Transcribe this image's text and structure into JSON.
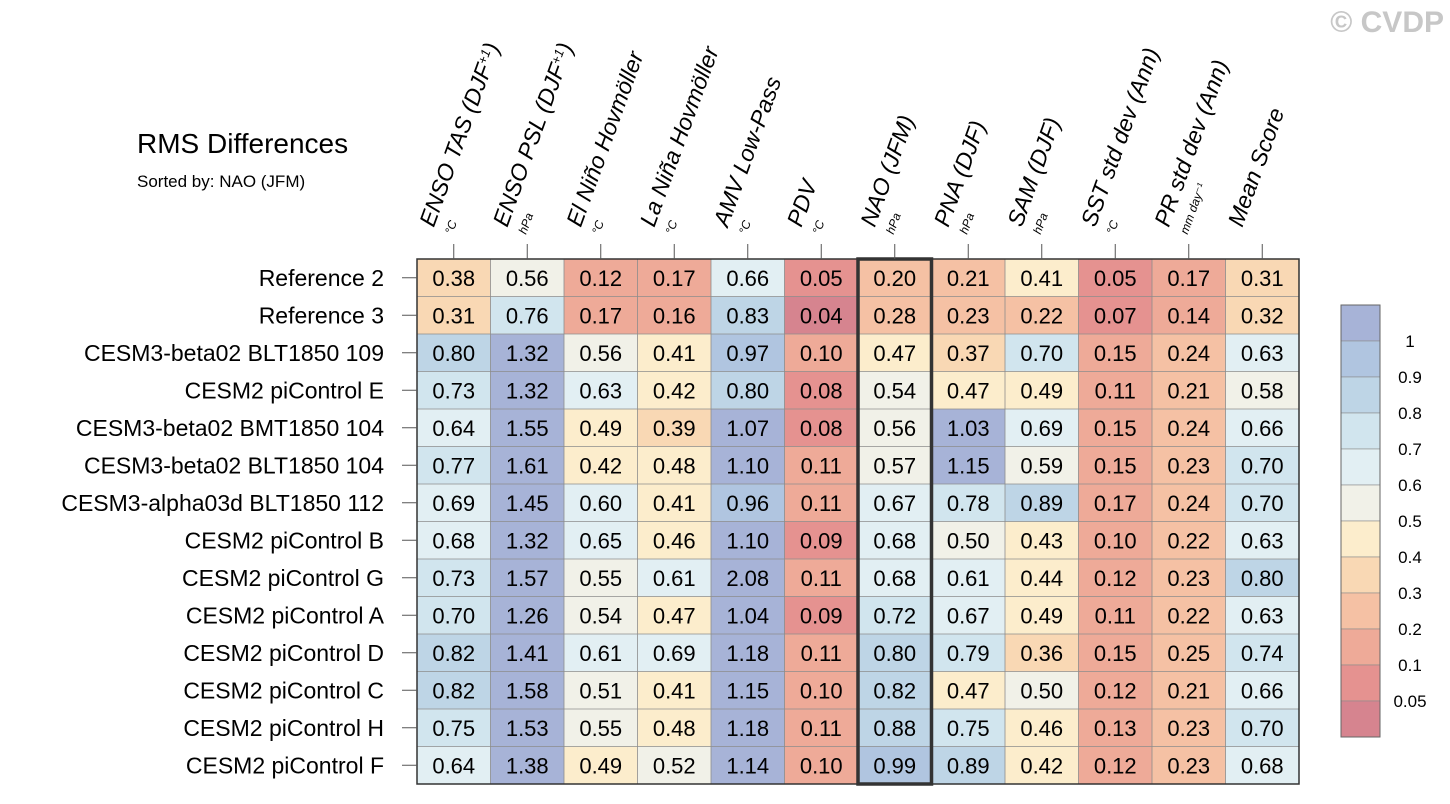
{
  "title": "RMS Differences",
  "subtitle": "Sorted by: NAO (JFM)",
  "watermark": "© CVDP",
  "chart_data": {
    "type": "heatmap",
    "title": "RMS Differences",
    "sorted_by": "NAO (JFM)",
    "highlight_column": "NAO (JFM)",
    "columns": [
      {
        "label": "ENSO TAS (DJF",
        "sup": "+1",
        "tail": ")",
        "unit": "°C"
      },
      {
        "label": "ENSO PSL (DJF",
        "sup": "+1",
        "tail": ")",
        "unit": "hPa"
      },
      {
        "label": "El Niño Hovmöller",
        "sup": "",
        "tail": "",
        "unit": "°C"
      },
      {
        "label": "La Niña Hovmöller",
        "sup": "",
        "tail": "",
        "unit": "°C"
      },
      {
        "label": "AMV Low-Pass",
        "sup": "",
        "tail": "",
        "unit": "°C"
      },
      {
        "label": "PDV",
        "sup": "",
        "tail": "",
        "unit": "°C"
      },
      {
        "label": "NAO (JFM)",
        "sup": "",
        "tail": "",
        "unit": "hPa"
      },
      {
        "label": "PNA (DJF)",
        "sup": "",
        "tail": "",
        "unit": "hPa"
      },
      {
        "label": "SAM (DJF)",
        "sup": "",
        "tail": "",
        "unit": "hPa"
      },
      {
        "label": "SST std dev (Ann)",
        "sup": "",
        "tail": "",
        "unit": "°C"
      },
      {
        "label": "PR std dev (Ann)",
        "sup": "",
        "tail": "",
        "unit": "mm day⁻¹"
      },
      {
        "label": "Mean Score",
        "sup": "",
        "tail": "",
        "unit": ""
      }
    ],
    "rows": [
      "Reference 2",
      "Reference 3",
      "CESM3-beta02 BLT1850 109",
      "CESM2 piControl E",
      "CESM3-beta02 BMT1850 104",
      "CESM3-beta02 BLT1850 104",
      "CESM3-alpha03d BLT1850 112",
      "CESM2 piControl B",
      "CESM2 piControl G",
      "CESM2 piControl A",
      "CESM2 piControl D",
      "CESM2 piControl C",
      "CESM2 piControl H",
      "CESM2 piControl F"
    ],
    "values": [
      [
        0.38,
        0.56,
        0.12,
        0.17,
        0.66,
        0.05,
        0.2,
        0.21,
        0.41,
        0.05,
        0.17,
        0.31
      ],
      [
        0.31,
        0.76,
        0.17,
        0.16,
        0.83,
        0.04,
        0.28,
        0.23,
        0.22,
        0.07,
        0.14,
        0.32
      ],
      [
        0.8,
        1.32,
        0.56,
        0.41,
        0.97,
        0.1,
        0.47,
        0.37,
        0.7,
        0.15,
        0.24,
        0.63
      ],
      [
        0.73,
        1.32,
        0.63,
        0.42,
        0.8,
        0.08,
        0.54,
        0.47,
        0.49,
        0.11,
        0.21,
        0.58
      ],
      [
        0.64,
        1.55,
        0.49,
        0.39,
        1.07,
        0.08,
        0.56,
        1.03,
        0.69,
        0.15,
        0.24,
        0.66
      ],
      [
        0.77,
        1.61,
        0.42,
        0.48,
        1.1,
        0.11,
        0.57,
        1.15,
        0.59,
        0.15,
        0.23,
        0.7
      ],
      [
        0.69,
        1.45,
        0.6,
        0.41,
        0.96,
        0.11,
        0.67,
        0.78,
        0.89,
        0.17,
        0.24,
        0.7
      ],
      [
        0.68,
        1.32,
        0.65,
        0.46,
        1.1,
        0.09,
        0.68,
        0.5,
        0.43,
        0.1,
        0.22,
        0.63
      ],
      [
        0.73,
        1.57,
        0.55,
        0.61,
        2.08,
        0.11,
        0.68,
        0.61,
        0.44,
        0.12,
        0.23,
        0.8
      ],
      [
        0.7,
        1.26,
        0.54,
        0.47,
        1.04,
        0.09,
        0.72,
        0.67,
        0.49,
        0.11,
        0.22,
        0.63
      ],
      [
        0.82,
        1.41,
        0.61,
        0.69,
        1.18,
        0.11,
        0.8,
        0.79,
        0.36,
        0.15,
        0.25,
        0.74
      ],
      [
        0.82,
        1.58,
        0.51,
        0.41,
        1.15,
        0.1,
        0.82,
        0.47,
        0.5,
        0.12,
        0.21,
        0.66
      ],
      [
        0.75,
        1.53,
        0.55,
        0.48,
        1.18,
        0.11,
        0.88,
        0.75,
        0.46,
        0.13,
        0.23,
        0.7
      ],
      [
        0.64,
        1.38,
        0.49,
        0.52,
        1.14,
        0.1,
        0.99,
        0.89,
        0.42,
        0.12,
        0.23,
        0.68
      ]
    ],
    "colorbar": {
      "tick_labels": [
        "1",
        "0.9",
        "0.8",
        "0.7",
        "0.6",
        "0.5",
        "0.4",
        "0.3",
        "0.2",
        "0.1",
        "0.05"
      ],
      "bins": [
        {
          "min": 1.0,
          "max": null,
          "color": "#a7b3d7"
        },
        {
          "min": 0.9,
          "max": 1.0,
          "color": "#b0c5e0"
        },
        {
          "min": 0.8,
          "max": 0.9,
          "color": "#bed5e6"
        },
        {
          "min": 0.7,
          "max": 0.8,
          "color": "#d1e5ee"
        },
        {
          "min": 0.6,
          "max": 0.7,
          "color": "#e2eff3"
        },
        {
          "min": 0.5,
          "max": 0.6,
          "color": "#f1f1e8"
        },
        {
          "min": 0.4,
          "max": 0.5,
          "color": "#fcedcc"
        },
        {
          "min": 0.3,
          "max": 0.4,
          "color": "#f9d8b4"
        },
        {
          "min": 0.2,
          "max": 0.3,
          "color": "#f5c1a4"
        },
        {
          "min": 0.1,
          "max": 0.2,
          "color": "#eeaa98"
        },
        {
          "min": 0.05,
          "max": 0.1,
          "color": "#e59290"
        },
        {
          "min": null,
          "max": 0.05,
          "color": "#d6848f"
        }
      ]
    }
  }
}
